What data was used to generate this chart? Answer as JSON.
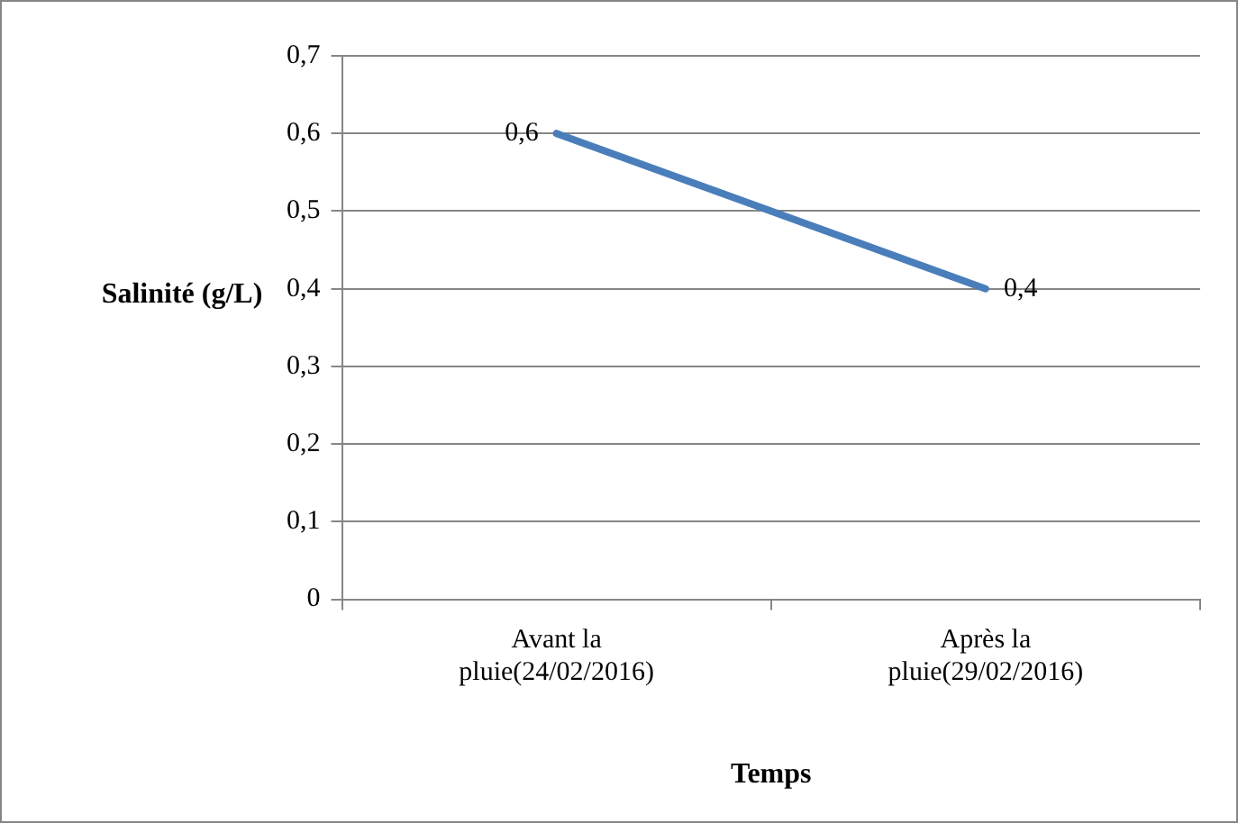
{
  "chart_data": {
    "type": "line",
    "xlabel": "Temps",
    "ylabel": "Salinité (g/L)",
    "categories": [
      "Avant la pluie(24/02/2016)",
      "Après la pluie(29/02/2016)"
    ],
    "series": [
      {
        "color": "#4a7ebb",
        "values": [
          0.6,
          0.4
        ],
        "value_labels": [
          "0,6",
          "0,4"
        ]
      }
    ],
    "ylim": [
      0,
      0.7
    ],
    "yticks": [
      0,
      {
        "value": 0.1,
        "label": "0,1"
      },
      {
        "value": 0.2,
        "label": "0,2"
      },
      {
        "value": 0.3,
        "label": "0,3"
      },
      {
        "value": 0.4,
        "label": "0,4"
      },
      {
        "value": 0.5,
        "label": "0,5"
      },
      {
        "value": 0.6,
        "label": "0,6"
      },
      {
        "value": 0.7,
        "label": "0,7"
      }
    ],
    "grid": "y",
    "legend": false,
    "marker": "none",
    "line_style": "solid"
  }
}
